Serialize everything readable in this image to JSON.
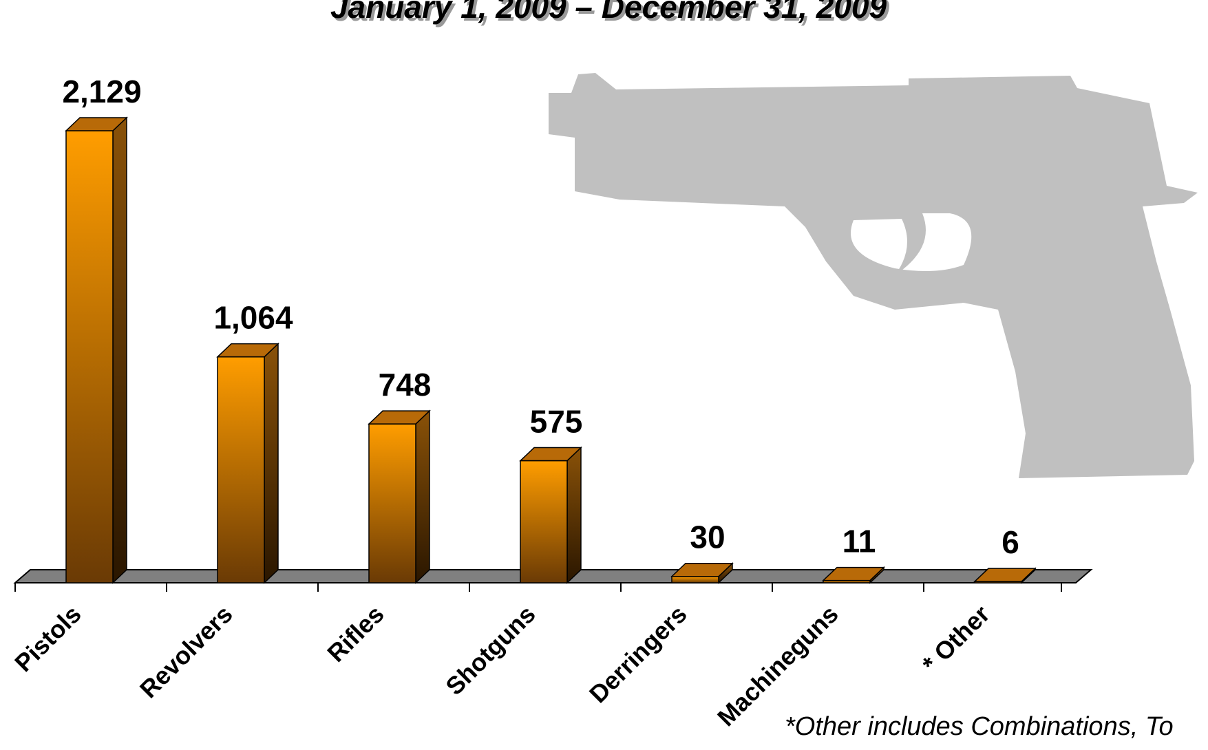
{
  "chart_data": {
    "type": "bar3d",
    "title": "January 1, 2009 – December 31, 2009",
    "categories": [
      "Pistols",
      "Revolvers",
      "Rifles",
      "Shotguns",
      "Derringers",
      "Machineguns",
      "* Other"
    ],
    "values": [
      2129,
      1064,
      748,
      575,
      30,
      11,
      6
    ],
    "value_labels": [
      "2,129",
      "1,064",
      "748",
      "575",
      "30",
      "11",
      "6"
    ],
    "color": "#ff9900",
    "note": "*Other includes Combinations, To"
  }
}
